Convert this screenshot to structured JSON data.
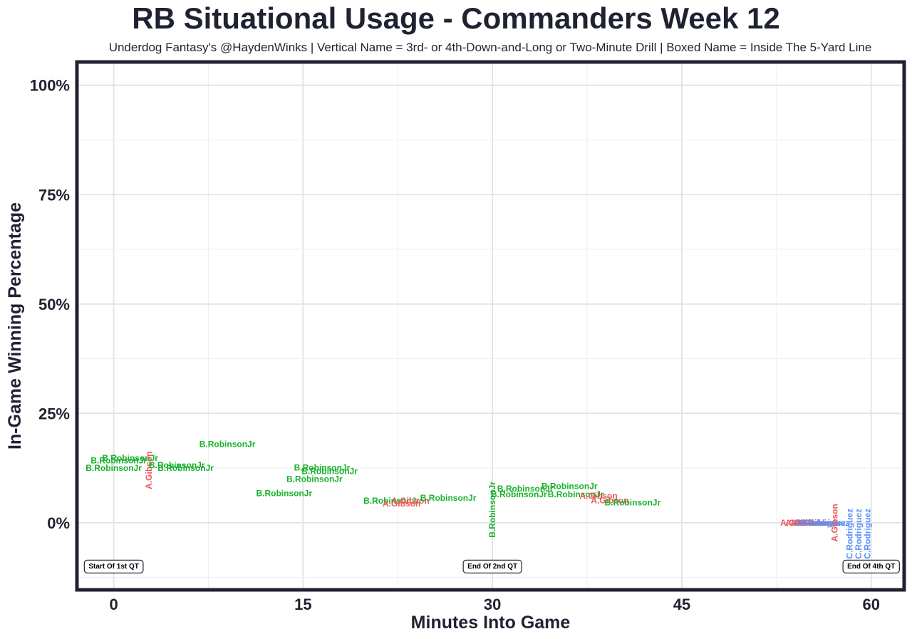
{
  "chart_data": {
    "type": "scatter",
    "title": "RB Situational Usage - Commanders Week 12",
    "subtitle": "Underdog Fantasy's @HaydenWinks | Vertical Name = 3rd- or 4th-Down-and-Long or Two-Minute Drill | Boxed Name = Inside The 5-Yard Line",
    "xlabel": "Minutes Into Game",
    "ylabel": "In-Game Winning Percentage",
    "xlim": [
      -2.8,
      62.5
    ],
    "ylim": [
      -15,
      105
    ],
    "x_ticks": [
      0,
      15,
      30,
      45,
      60
    ],
    "y_ticks": [
      0,
      25,
      50,
      75,
      100
    ],
    "y_tick_labels": [
      "0%",
      "25%",
      "50%",
      "75%",
      "100%"
    ],
    "x_tick_labels": [
      "0",
      "15",
      "30",
      "45",
      "60"
    ],
    "grid": true,
    "colors": {
      "B.RobinsonJr": "#18b22c",
      "A.Gibson": "#ea5a5a",
      "C.Rodriguez": "#5b8ff9"
    },
    "quarter_markers": [
      {
        "label": "Start Of 1st QT",
        "x": 0,
        "y": -10
      },
      {
        "label": "End Of 2nd QT",
        "x": 30,
        "y": -10
      },
      {
        "label": "End Of 4th QT",
        "x": 60,
        "y": -10
      }
    ],
    "points": [
      {
        "player": "B.RobinsonJr",
        "x": 1.3,
        "y": 14.8,
        "vertical": false
      },
      {
        "player": "B.RobinsonJr",
        "x": 0.4,
        "y": 14.2,
        "vertical": false
      },
      {
        "player": "B.RobinsonJr",
        "x": 0.0,
        "y": 12.5,
        "vertical": false
      },
      {
        "player": "A.Gibson",
        "x": 2.8,
        "y": 12.0,
        "vertical": true
      },
      {
        "player": "B.RobinsonJr",
        "x": 5.0,
        "y": 13.2,
        "vertical": false
      },
      {
        "player": "B.RobinsonJr",
        "x": 5.7,
        "y": 12.5,
        "vertical": false
      },
      {
        "player": "B.RobinsonJr",
        "x": 9.0,
        "y": 18.0,
        "vertical": false
      },
      {
        "player": "B.RobinsonJr",
        "x": 16.5,
        "y": 12.6,
        "vertical": false
      },
      {
        "player": "B.RobinsonJr",
        "x": 17.1,
        "y": 11.8,
        "vertical": false
      },
      {
        "player": "B.RobinsonJr",
        "x": 15.9,
        "y": 10.0,
        "vertical": false
      },
      {
        "player": "B.RobinsonJr",
        "x": 13.5,
        "y": 6.7,
        "vertical": false
      },
      {
        "player": "B.RobinsonJr",
        "x": 22.0,
        "y": 5.0,
        "vertical": false
      },
      {
        "player": "A.Gibson",
        "x": 23.5,
        "y": 5.0,
        "vertical": false
      },
      {
        "player": "A.Gibson",
        "x": 22.8,
        "y": 4.4,
        "vertical": false
      },
      {
        "player": "B.RobinsonJr",
        "x": 26.5,
        "y": 5.7,
        "vertical": false
      },
      {
        "player": "B.RobinsonJr",
        "x": 30.0,
        "y": 3.0,
        "vertical": true
      },
      {
        "player": "B.RobinsonJr",
        "x": 32.6,
        "y": 7.8,
        "vertical": false
      },
      {
        "player": "B.RobinsonJr",
        "x": 32.1,
        "y": 6.5,
        "vertical": false
      },
      {
        "player": "B.RobinsonJr",
        "x": 36.1,
        "y": 8.4,
        "vertical": false
      },
      {
        "player": "B.RobinsonJr",
        "x": 36.6,
        "y": 6.5,
        "vertical": false
      },
      {
        "player": "A.Gibson",
        "x": 38.4,
        "y": 6.2,
        "vertical": false
      },
      {
        "player": "A.Gibson",
        "x": 39.3,
        "y": 5.1,
        "vertical": false
      },
      {
        "player": "B.RobinsonJr",
        "x": 41.1,
        "y": 4.6,
        "vertical": false
      },
      {
        "player": "A.Gibson",
        "x": 54.3,
        "y": 0.0,
        "vertical": false
      },
      {
        "player": "A.Gibson",
        "x": 54.7,
        "y": 0.0,
        "vertical": false
      },
      {
        "player": "A.Gibson",
        "x": 55.1,
        "y": 0.0,
        "vertical": false
      },
      {
        "player": "A.Gibson",
        "x": 55.4,
        "y": 0.0,
        "vertical": false
      },
      {
        "player": "A.Gibson",
        "x": 55.8,
        "y": 0.0,
        "vertical": false
      },
      {
        "player": "C.Rodriguez",
        "x": 56.0,
        "y": 0.0,
        "vertical": false
      },
      {
        "player": "C.Rodriguez",
        "x": 56.3,
        "y": 0.0,
        "vertical": false
      },
      {
        "player": "A.Gibson",
        "x": 57.1,
        "y": 0.0,
        "vertical": true
      },
      {
        "player": "C.Rodriguez",
        "x": 58.3,
        "y": -2.5,
        "vertical": true
      },
      {
        "player": "C.Rodriguez",
        "x": 59.0,
        "y": -2.5,
        "vertical": true
      },
      {
        "player": "C.Rodriguez",
        "x": 59.7,
        "y": -2.5,
        "vertical": true
      }
    ]
  }
}
